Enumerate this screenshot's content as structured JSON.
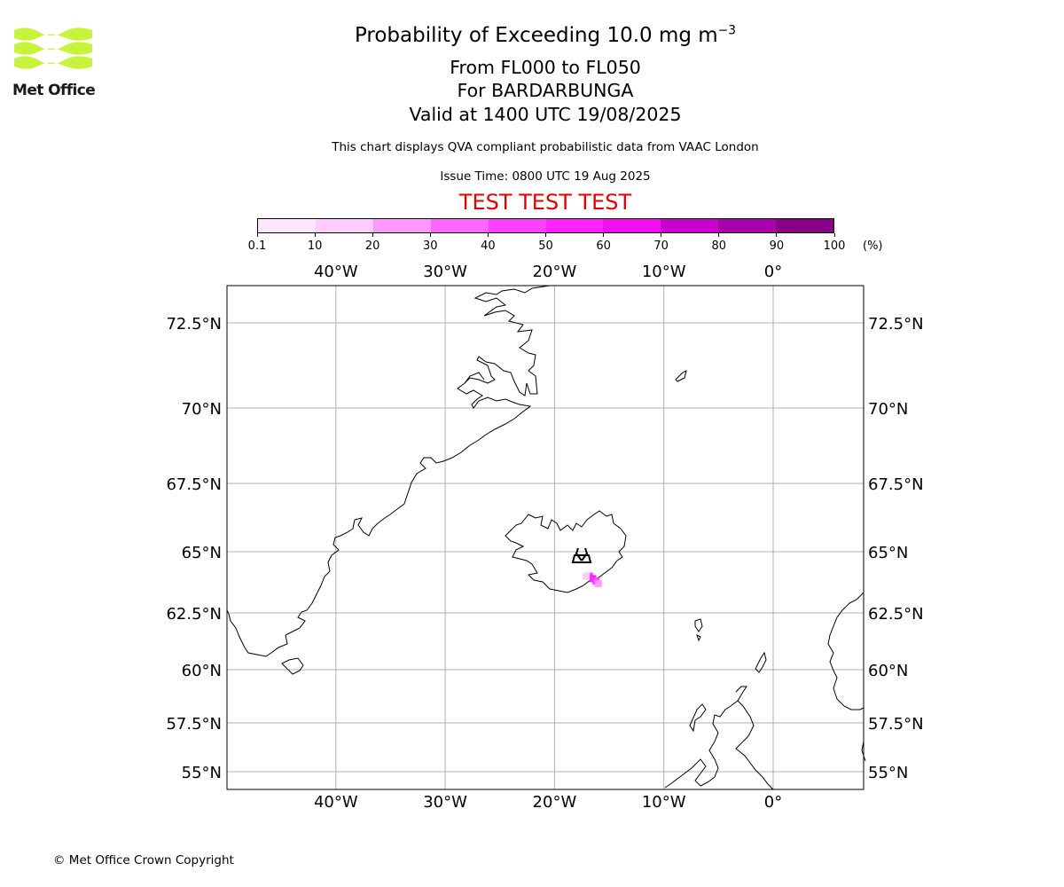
{
  "title": {
    "line1_prefix": "Probability of Exceeding 10.0 mg m",
    "line1_exponent": "−3",
    "line2": "From FL000 to FL050",
    "line3": "For BARDARBUNGA",
    "line4": "Valid at 1400 UTC 19/08/2025"
  },
  "subtitle": "This chart displays QVA compliant probabilistic data from VAAC London",
  "issue_time": "Issue Time: 0800 UTC 19 Aug 2025",
  "test_banner": "TEST TEST TEST",
  "test_banner_color": "#e00000",
  "logo": {
    "text": "Met Office",
    "color": "#c8f23c"
  },
  "colorbar": {
    "ticks": [
      "0.1",
      "10",
      "20",
      "30",
      "40",
      "50",
      "60",
      "70",
      "80",
      "90",
      "100"
    ],
    "unit": "(%)",
    "colors": [
      "#ffe6ff",
      "#ffccff",
      "#ff99ff",
      "#ff66ff",
      "#ff40ff",
      "#ff22ff",
      "#f00ff0",
      "#cc00cc",
      "#aa00aa",
      "#880088",
      "#660066"
    ]
  },
  "map": {
    "lon_labels": [
      "40°W",
      "30°W",
      "20°W",
      "10°W",
      "0°"
    ],
    "lon_values": [
      -40,
      -30,
      -20,
      -10,
      0
    ],
    "lat_labels": [
      "72.5°N",
      "70°N",
      "67.5°N",
      "65°N",
      "62.5°N",
      "60°N",
      "57.5°N",
      "55°N"
    ],
    "lat_values": [
      72.5,
      70,
      67.5,
      65,
      62.5,
      60,
      57.5,
      55
    ],
    "volcano": {
      "name": "BARDARBUNGA",
      "icon": "volcano-icon",
      "lat": 64.63,
      "lon": -17.53
    },
    "ash_probability_cells": [
      {
        "lat": 64.0,
        "lon": -16.8,
        "probability": 40
      },
      {
        "lat": 63.9,
        "lon": -16.5,
        "probability": 55
      },
      {
        "lat": 63.8,
        "lon": -16.2,
        "probability": 45
      },
      {
        "lat": 63.7,
        "lon": -16.0,
        "probability": 20
      },
      {
        "lat": 64.0,
        "lon": -17.1,
        "probability": 10
      }
    ]
  },
  "copyright": "© Met Office Crown Copyright"
}
